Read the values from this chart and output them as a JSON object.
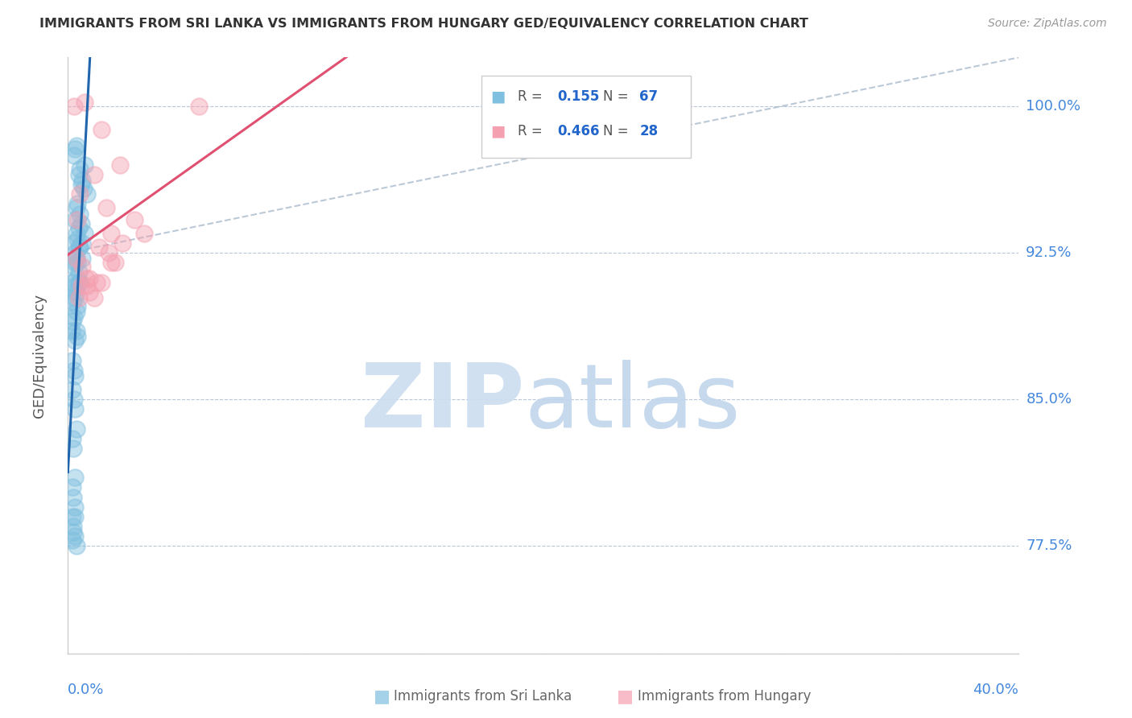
{
  "title": "IMMIGRANTS FROM SRI LANKA VS IMMIGRANTS FROM HUNGARY GED/EQUIVALENCY CORRELATION CHART",
  "source": "Source: ZipAtlas.com",
  "ylabel": "GED/Equivalency",
  "yticks": [
    77.5,
    85.0,
    92.5,
    100.0
  ],
  "ytick_labels": [
    "77.5%",
    "85.0%",
    "92.5%",
    "100.0%"
  ],
  "xmin": 0.0,
  "xmax": 40.0,
  "ymin": 72.0,
  "ymax": 102.5,
  "blue_color": "#7fbfdf",
  "pink_color": "#f4a0b0",
  "blue_line_color": "#2166ac",
  "pink_line_color": "#e05070",
  "diag_color": "#aabbcc",
  "watermark_zip_color": "#d8e8f4",
  "watermark_atlas_color": "#c8dff0",
  "sri_lanka_x": [
    0.35,
    0.25,
    0.3,
    0.7,
    0.45,
    0.5,
    0.6,
    0.55,
    0.8,
    0.65,
    0.4,
    0.35,
    0.5,
    0.3,
    0.55,
    0.45,
    0.35,
    0.4,
    0.6,
    0.7,
    0.25,
    0.45,
    0.3,
    0.5,
    0.35,
    0.3,
    0.25,
    0.4,
    0.45,
    0.6,
    0.15,
    0.3,
    0.35,
    0.2,
    0.45,
    0.3,
    0.35,
    0.5,
    0.2,
    0.35,
    0.25,
    0.4,
    0.2,
    0.15,
    0.3,
    0.35,
    0.4,
    0.2,
    0.25,
    0.3,
    0.2,
    0.25,
    0.3,
    0.35,
    0.18,
    0.22,
    0.28,
    0.18,
    0.22,
    0.28,
    0.18,
    0.22,
    0.28,
    0.35,
    0.18,
    0.22,
    0.28
  ],
  "sri_lanka_y": [
    98.0,
    97.5,
    97.8,
    97.0,
    96.5,
    96.8,
    96.2,
    96.0,
    95.5,
    95.8,
    95.0,
    94.8,
    94.5,
    94.2,
    94.0,
    93.8,
    93.5,
    93.2,
    93.0,
    93.5,
    93.0,
    92.8,
    92.5,
    92.8,
    92.2,
    92.0,
    91.8,
    92.0,
    91.5,
    92.2,
    91.0,
    90.8,
    91.2,
    90.5,
    91.0,
    90.2,
    90.5,
    91.0,
    90.0,
    89.5,
    89.2,
    89.8,
    89.0,
    88.5,
    88.0,
    88.5,
    88.2,
    87.0,
    86.5,
    86.2,
    85.5,
    85.0,
    84.5,
    83.5,
    83.0,
    82.5,
    81.0,
    80.5,
    80.0,
    79.5,
    79.0,
    78.5,
    78.0,
    77.5,
    77.8,
    78.2,
    79.0
  ],
  "hungary_x": [
    0.25,
    0.7,
    1.4,
    2.2,
    1.1,
    0.4,
    0.5,
    1.6,
    1.8,
    1.3,
    0.35,
    0.6,
    0.9,
    3.2,
    2.0,
    1.2,
    0.55,
    1.7,
    2.3,
    2.8,
    0.9,
    0.75,
    1.4,
    1.8,
    1.1,
    0.8,
    0.45,
    5.5
  ],
  "hungary_y": [
    100.0,
    100.2,
    98.8,
    97.0,
    96.5,
    94.2,
    95.5,
    94.8,
    93.5,
    92.8,
    92.2,
    91.8,
    91.2,
    93.5,
    92.0,
    91.0,
    90.8,
    92.5,
    93.0,
    94.2,
    90.5,
    91.2,
    91.0,
    92.0,
    90.2,
    90.8,
    90.2,
    100.0
  ]
}
